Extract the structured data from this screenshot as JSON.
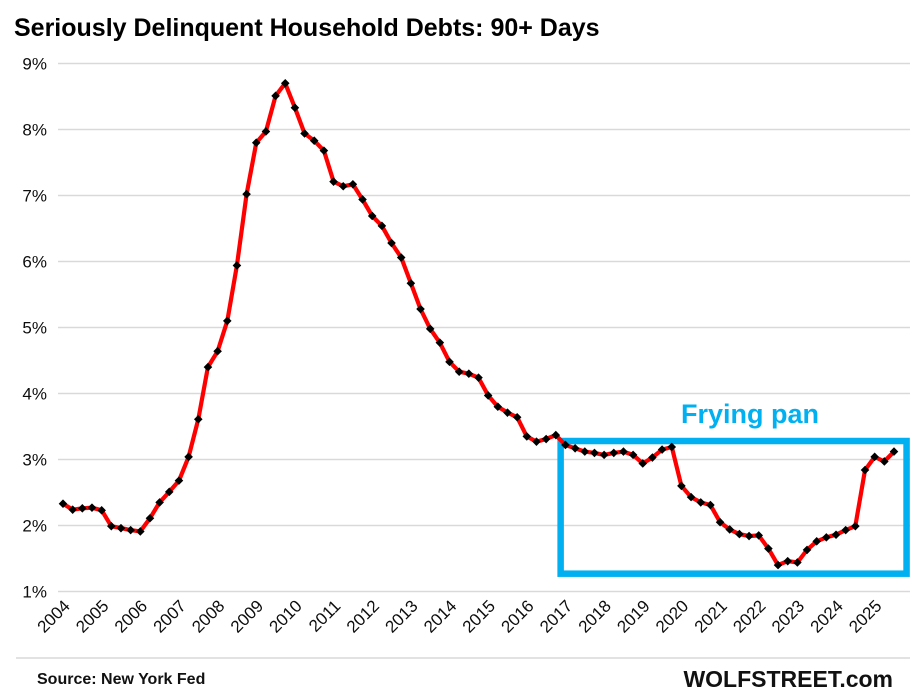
{
  "title": "Seriously Delinquent Household Debts: 90+ Days",
  "footer": {
    "source": "Source: New York Fed",
    "brand": "WOLFSTREET.com"
  },
  "colors": {
    "line": "#FF0000",
    "marker": "#000000",
    "grid": "#D9D9D9",
    "axis_text": "#0d0d0d",
    "annotation": "#00B0F0",
    "background": "#FFFFFF"
  },
  "chart_data": {
    "type": "line",
    "title": "Seriously Delinquent Household Debts: 90+ Days",
    "xlabel": "",
    "ylabel": "",
    "unit": "%",
    "frequency": "quarterly",
    "start_period": "2004 Q1",
    "end_period": "2025 Q3",
    "x_tick_years": [
      2004,
      2005,
      2006,
      2007,
      2008,
      2009,
      2010,
      2011,
      2012,
      2013,
      2014,
      2015,
      2016,
      2017,
      2018,
      2019,
      2020,
      2021,
      2022,
      2023,
      2024,
      2025
    ],
    "y_tick_labels": [
      "1%",
      "2%",
      "3%",
      "4%",
      "5%",
      "6%",
      "7%",
      "8%",
      "9%"
    ],
    "ylim": [
      1,
      9
    ],
    "grid": "horizontal",
    "legend": "none",
    "marker": "diamond",
    "values": [
      2.33,
      2.24,
      2.26,
      2.27,
      2.23,
      1.99,
      1.96,
      1.93,
      1.91,
      2.11,
      2.35,
      2.51,
      2.68,
      3.04,
      3.61,
      4.4,
      4.64,
      5.1,
      5.94,
      7.02,
      7.8,
      7.97,
      8.51,
      8.7,
      8.33,
      7.94,
      7.83,
      7.68,
      7.21,
      7.14,
      7.17,
      6.94,
      6.69,
      6.54,
      6.28,
      6.06,
      5.67,
      5.28,
      4.98,
      4.77,
      4.48,
      4.33,
      4.3,
      4.24,
      3.97,
      3.8,
      3.71,
      3.64,
      3.35,
      3.27,
      3.31,
      3.37,
      3.22,
      3.17,
      3.12,
      3.1,
      3.07,
      3.1,
      3.12,
      3.07,
      2.94,
      3.03,
      3.15,
      3.19,
      2.6,
      2.43,
      2.35,
      2.31,
      2.05,
      1.94,
      1.87,
      1.84,
      1.85,
      1.65,
      1.4,
      1.46,
      1.44,
      1.63,
      1.76,
      1.82,
      1.86,
      1.93,
      1.99,
      2.84,
      3.04,
      2.97,
      3.12
    ],
    "annotation": {
      "label": "Frying pan",
      "color": "#00B0F0",
      "box": {
        "from_quarter_index": 51.5,
        "to_quarter_index": 87.3,
        "from_value": 1.27,
        "to_value": 3.28
      }
    }
  }
}
